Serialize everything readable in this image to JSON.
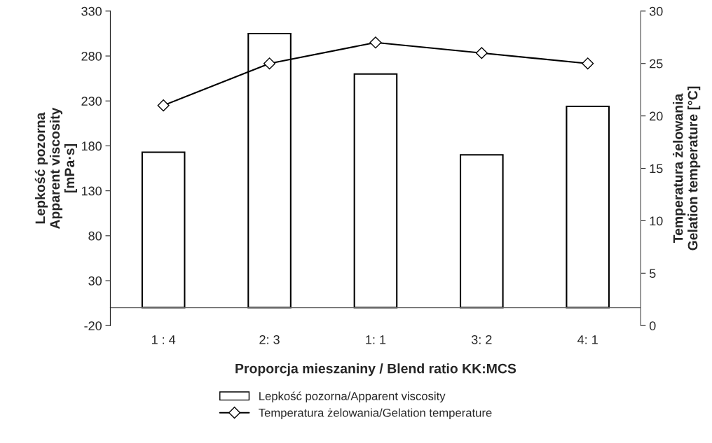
{
  "chart_data": {
    "type": "bar",
    "categories": [
      "1 : 4",
      "2: 3",
      "1: 1",
      "3: 2",
      "4: 1"
    ],
    "xlabel": "Proporcja mieszaniny / Blend ratio KK:MCS",
    "ylabel": "Lepkość pozorna\nApparent viscosity\n[mPa·s]",
    "y2label": "Temperatura żelowania\nGelation temperature [°C]",
    "ylim": [
      -20,
      330
    ],
    "yticks": [
      -20,
      30,
      80,
      130,
      180,
      230,
      280,
      330
    ],
    "y2lim": [
      0,
      30
    ],
    "y2ticks": [
      0,
      5,
      10,
      15,
      20,
      25,
      30
    ],
    "series": [
      {
        "name": "Lepkość pozorna/Apparent viscosity",
        "color": "#ffffff",
        "values": [
          173,
          305,
          260,
          170,
          224
        ]
      },
      {
        "name": "Temperatura żelowania/Gelation temperature",
        "type": "line",
        "axis": "y2",
        "color": "#000000",
        "marker": "diamond",
        "values": [
          21,
          25,
          27,
          26,
          25
        ]
      }
    ],
    "legend": "bottom",
    "grid": false
  }
}
